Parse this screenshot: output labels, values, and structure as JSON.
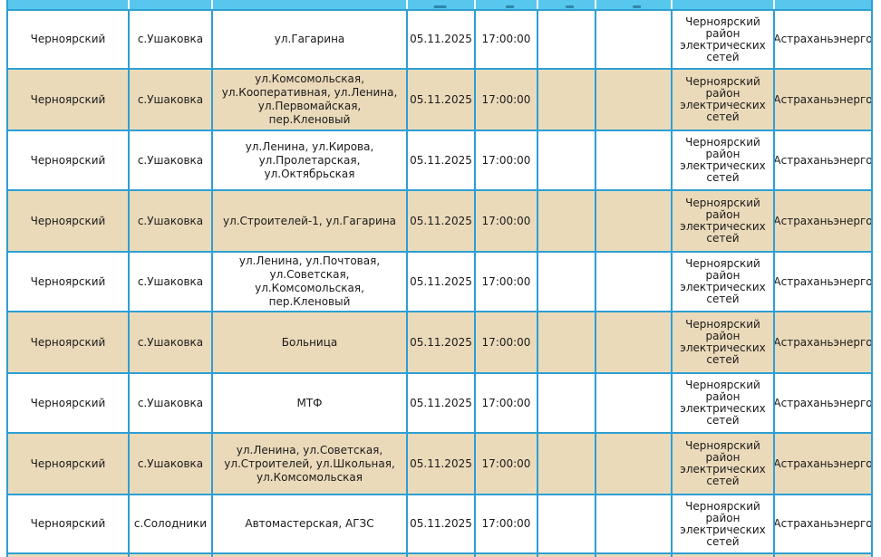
{
  "colors": {
    "grid_line": "#2d9fd4",
    "header_fill": "#57c7ee",
    "header_divider": "#f2fafe",
    "row_beige": "#ebdaba",
    "row_white": "#ffffff",
    "text": "#1a1a1a"
  },
  "table": {
    "column_keys": [
      "district",
      "settlement",
      "streets",
      "start_date",
      "start_time",
      "empty_1",
      "empty_2",
      "network_org",
      "company"
    ],
    "rows": [
      {
        "district": "Черноярский",
        "settlement": "с.Ушаковка",
        "streets": "ул.Гагарина",
        "start_date": "05.11.2025",
        "start_time": "17:00:00",
        "empty_1": "",
        "empty_2": "",
        "network_org": "Черноярский район электрических сетей",
        "company": "Астраханьэнерго"
      },
      {
        "district": "Черноярский",
        "settlement": "с.Ушаковка",
        "streets": "ул.Комсомольская, ул.Кооперативная, ул.Ленина, ул.Первомайская, пер.Кленовый",
        "start_date": "05.11.2025",
        "start_time": "17:00:00",
        "empty_1": "",
        "empty_2": "",
        "network_org": "Черноярский район электрических сетей",
        "company": "Астраханьэнерго"
      },
      {
        "district": "Черноярский",
        "settlement": "с.Ушаковка",
        "streets": "ул.Ленина, ул.Кирова, ул.Пролетарская, ул.Октябрьская",
        "start_date": "05.11.2025",
        "start_time": "17:00:00",
        "empty_1": "",
        "empty_2": "",
        "network_org": "Черноярский район электрических сетей",
        "company": "Астраханьэнерго"
      },
      {
        "district": "Черноярский",
        "settlement": "с.Ушаковка",
        "streets": "ул.Строителей-1, ул.Гагарина",
        "start_date": "05.11.2025",
        "start_time": "17:00:00",
        "empty_1": "",
        "empty_2": "",
        "network_org": "Черноярский район электрических сетей",
        "company": "Астраханьэнерго"
      },
      {
        "district": "Черноярский",
        "settlement": "с.Ушаковка",
        "streets": "ул.Ленина, ул.Почтовая, ул.Советская, ул.Комсомольская, пер.Кленовый",
        "start_date": "05.11.2025",
        "start_time": "17:00:00",
        "empty_1": "",
        "empty_2": "",
        "network_org": "Черноярский район электрических сетей",
        "company": "Астраханьэнерго"
      },
      {
        "district": "Черноярский",
        "settlement": "с.Ушаковка",
        "streets": "Больница",
        "start_date": "05.11.2025",
        "start_time": "17:00:00",
        "empty_1": "",
        "empty_2": "",
        "network_org": "Черноярский район электрических сетей",
        "company": "Астраханьэнерго"
      },
      {
        "district": "Черноярский",
        "settlement": "с.Ушаковка",
        "streets": "МТФ",
        "start_date": "05.11.2025",
        "start_time": "17:00:00",
        "empty_1": "",
        "empty_2": "",
        "network_org": "Черноярский район электрических сетей",
        "company": "Астраханьэнерго"
      },
      {
        "district": "Черноярский",
        "settlement": "с.Ушаковка",
        "streets": "ул.Ленина, ул.Советская, ул.Строителей, ул.Школьная, ул.Комсомольская",
        "start_date": "05.11.2025",
        "start_time": "17:00:00",
        "empty_1": "",
        "empty_2": "",
        "network_org": "Черноярский район электрических сетей",
        "company": "Астраханьэнерго"
      },
      {
        "district": "Черноярский",
        "settlement": "с.Солодники",
        "streets": "Автомастерская, АГЗС",
        "start_date": "05.11.2025",
        "start_time": "17:00:00",
        "empty_1": "",
        "empty_2": "",
        "network_org": "Черноярский район электрических сетей",
        "company": "Астраханьэнерго"
      },
      {
        "district": "",
        "settlement": "",
        "streets": "",
        "start_date": "",
        "start_time": "",
        "empty_1": "",
        "empty_2": "",
        "network_org": "",
        "company": ""
      }
    ]
  }
}
